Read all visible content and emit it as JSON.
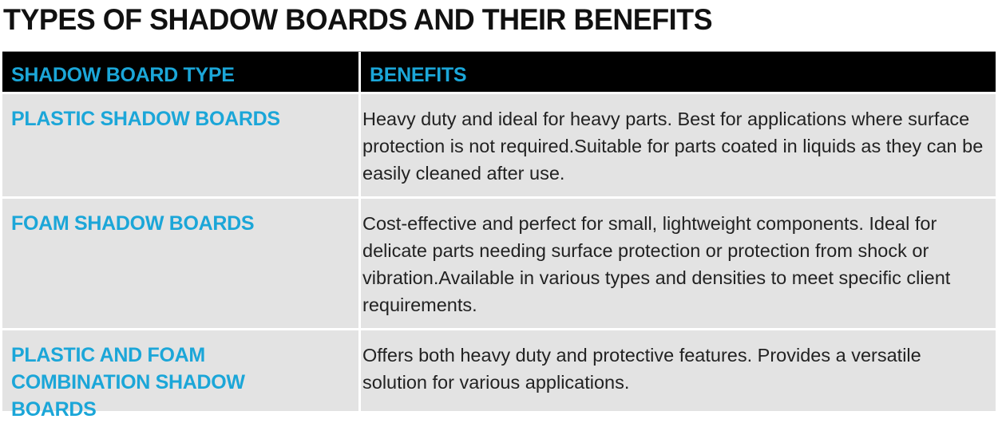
{
  "title": "TYPES OF SHADOW BOARDS AND THEIR BENEFITS",
  "colors": {
    "accent": "#1ba6d8",
    "header_bg": "#000000",
    "cell_bg": "#e3e3e3"
  },
  "headers": [
    "SHADOW BOARD TYPE",
    "BENEFITS"
  ],
  "rows": [
    {
      "type": "PLASTIC SHADOW BOARDS",
      "benefits": "Heavy duty and ideal for heavy parts. Best for applications where surface protection is not required.Suitable for parts coated in liquids as they can be easily cleaned after use."
    },
    {
      "type": "FOAM SHADOW BOARDS",
      "benefits": "Cost-effective and perfect for small, lightweight components. Ideal for delicate parts needing surface protection or protection from shock or vibration.Available in various types and densities to meet specific client requirements."
    },
    {
      "type": "PLASTIC AND FOAM COMBINATION SHADOW BOARDS",
      "benefits": "Offers both heavy duty and protective features. Provides a versatile solution for various applications."
    }
  ]
}
